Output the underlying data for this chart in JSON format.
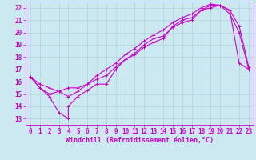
{
  "xlabel": "Windchill (Refroidissement éolien,°C)",
  "bg_color": "#cce8f0",
  "line_color": "#cc00cc",
  "grid_color": "#aaccdd",
  "xlim": [
    -0.5,
    23.5
  ],
  "ylim": [
    12.5,
    22.5
  ],
  "xticks": [
    0,
    1,
    2,
    3,
    4,
    5,
    6,
    7,
    8,
    9,
    10,
    11,
    12,
    13,
    14,
    15,
    16,
    17,
    18,
    19,
    20,
    21,
    22,
    23
  ],
  "yticks": [
    13,
    14,
    15,
    16,
    17,
    18,
    19,
    20,
    21,
    22
  ],
  "line1_x": [
    0,
    1,
    2,
    3,
    4,
    4,
    5,
    6,
    7,
    8,
    9,
    10,
    11,
    12,
    13,
    14,
    15,
    16,
    17,
    18,
    19,
    20,
    21,
    22,
    23
  ],
  "line1_y": [
    16.4,
    15.5,
    14.8,
    13.5,
    13.0,
    14.0,
    14.8,
    15.3,
    15.8,
    15.8,
    17.0,
    17.8,
    18.3,
    19.0,
    19.5,
    19.7,
    20.4,
    20.8,
    21.0,
    21.8,
    22.0,
    22.2,
    21.5,
    20.0,
    17.0
  ],
  "line2_x": [
    0,
    1,
    2,
    3,
    4,
    5,
    6,
    7,
    8,
    9,
    10,
    11,
    12,
    13,
    14,
    15,
    16,
    17,
    18,
    19,
    20,
    21,
    22,
    23
  ],
  "line2_y": [
    16.4,
    15.5,
    15.0,
    15.2,
    15.5,
    15.5,
    15.8,
    16.2,
    16.5,
    17.2,
    17.8,
    18.2,
    18.8,
    19.2,
    19.5,
    20.5,
    21.0,
    21.2,
    21.8,
    22.2,
    22.2,
    21.8,
    20.5,
    17.2
  ],
  "line3_x": [
    0,
    1,
    2,
    3,
    4,
    5,
    6,
    7,
    8,
    9,
    10,
    11,
    12,
    13,
    14,
    15,
    16,
    17,
    18,
    19,
    20,
    21,
    22,
    23
  ],
  "line3_y": [
    16.4,
    15.8,
    15.5,
    15.2,
    14.8,
    15.2,
    15.8,
    16.5,
    17.0,
    17.5,
    18.2,
    18.7,
    19.3,
    19.8,
    20.2,
    20.8,
    21.2,
    21.5,
    22.0,
    22.3,
    22.2,
    21.8,
    17.5,
    17.0
  ],
  "xlabel_fontsize": 6,
  "tick_fontsize": 5.5,
  "linewidth": 0.8,
  "markersize": 2.5
}
